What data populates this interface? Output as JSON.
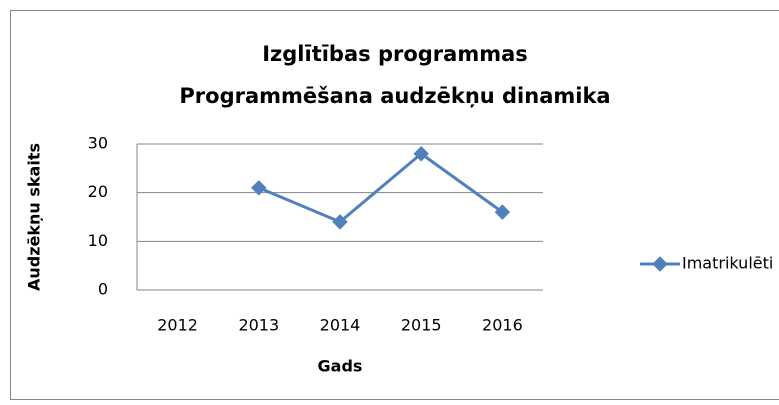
{
  "chart_data": {
    "type": "line",
    "title": [
      "Izglītības programmas",
      "Programmēšana  audzēkņu dinamika"
    ],
    "x_label": "Gads",
    "y_label": "Audzēkņu skaits",
    "categories": [
      "2012",
      "2013",
      "2014",
      "2015",
      "2016"
    ],
    "series": [
      {
        "name": "Imatrikulēti",
        "color": "#4f81bd",
        "values": [
          null,
          21,
          14,
          28,
          16
        ]
      }
    ],
    "ylim": [
      0,
      30
    ],
    "yticks": [
      0,
      10,
      20,
      30
    ],
    "grid": true,
    "legend": "right"
  }
}
